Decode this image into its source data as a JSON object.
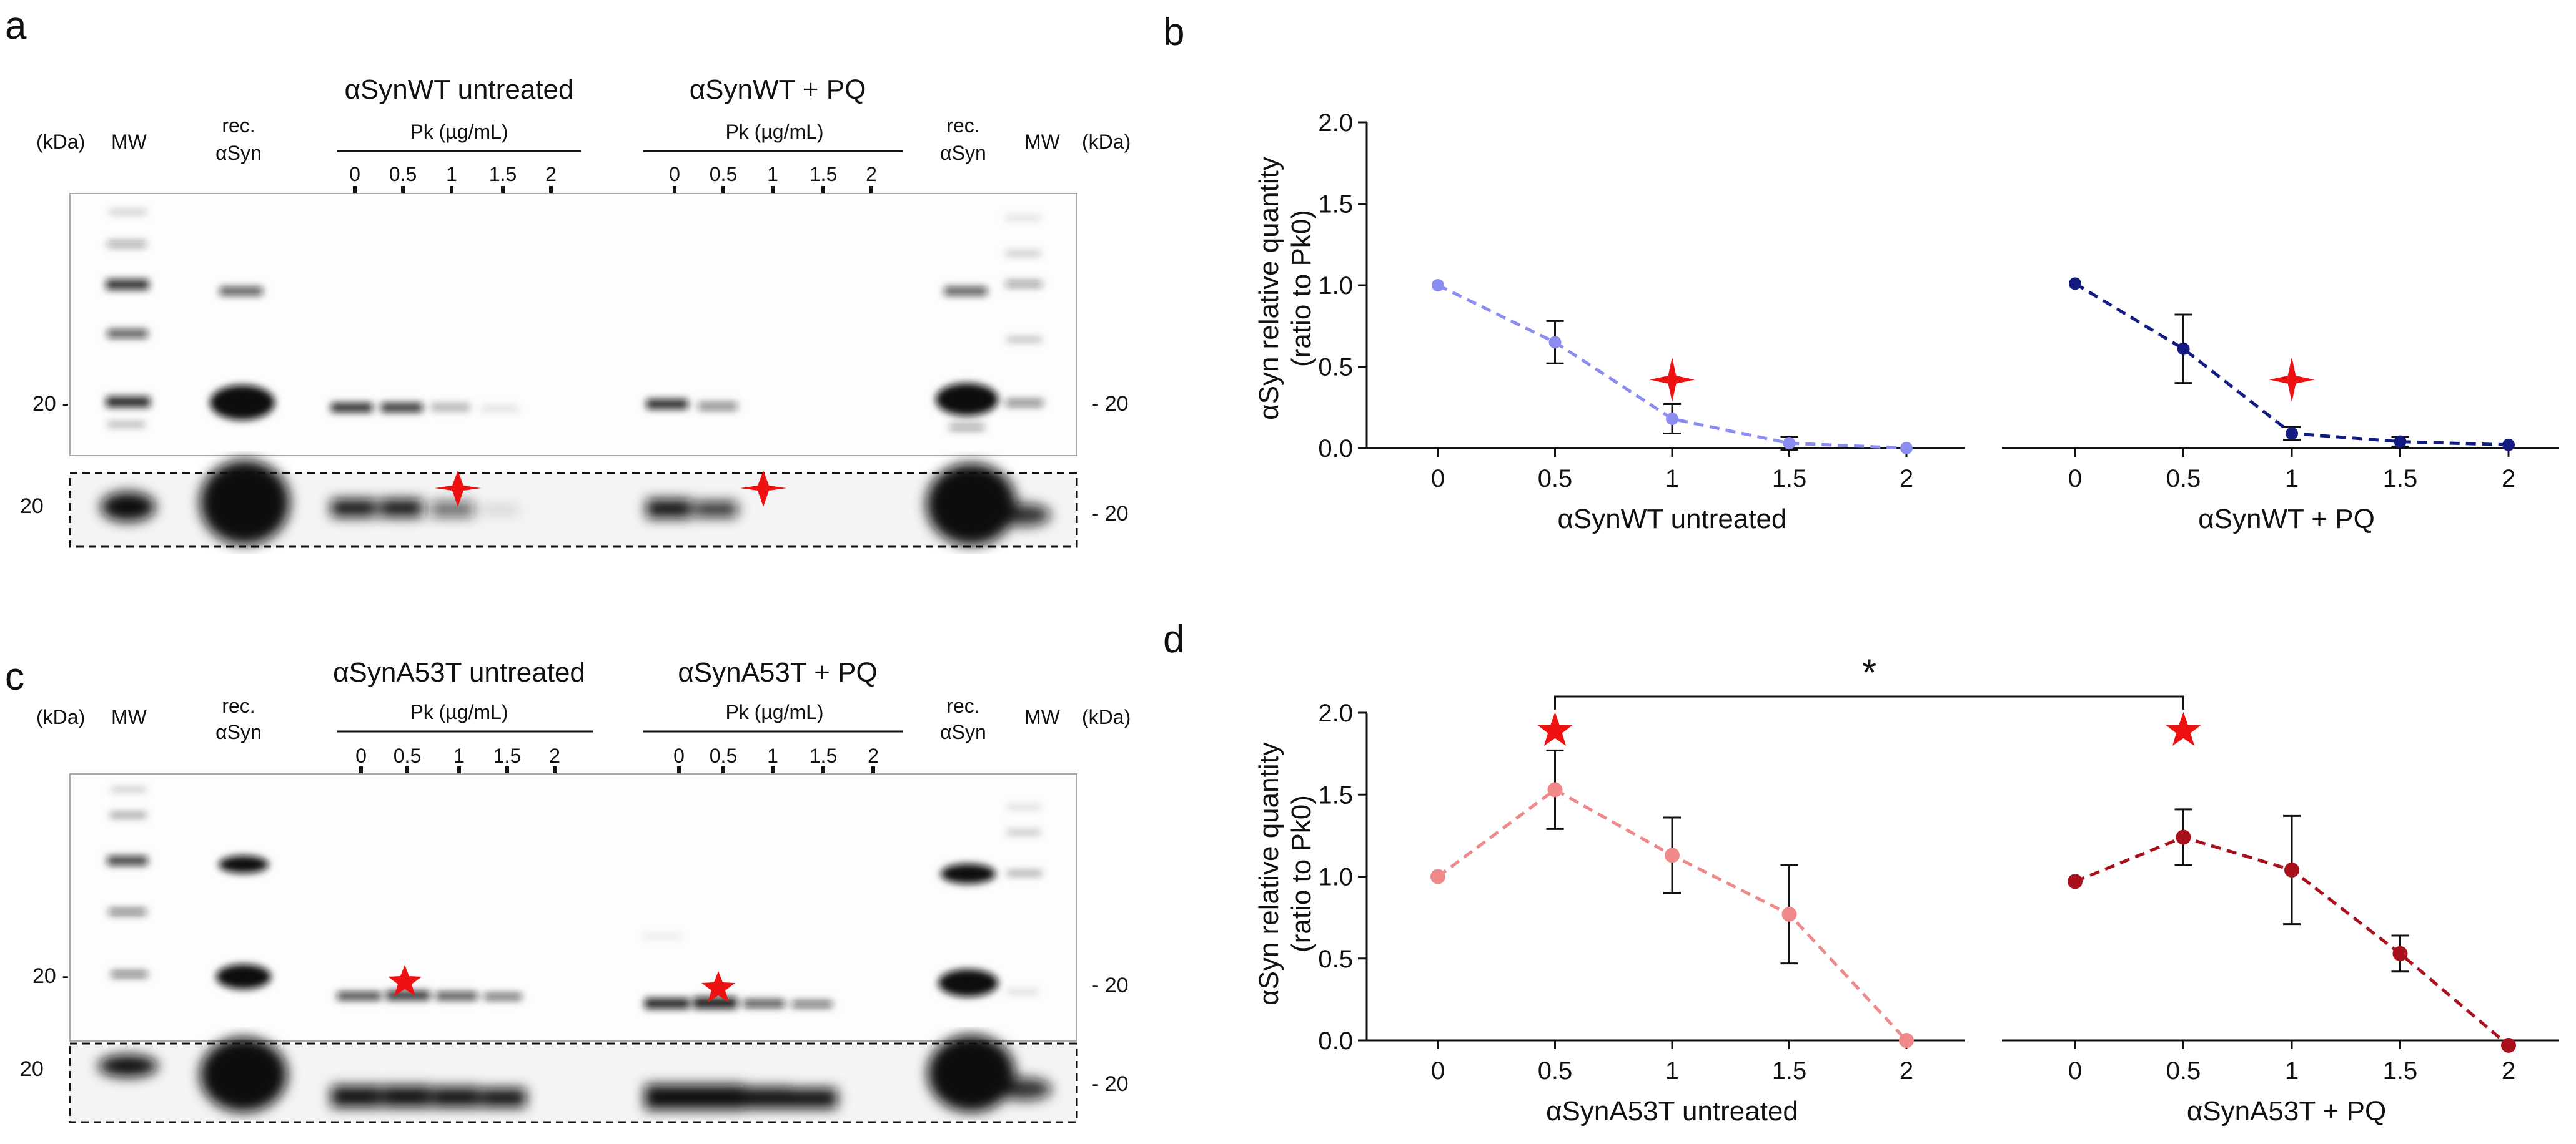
{
  "panels": {
    "a": {
      "letter": "a",
      "group_left": "αSynWT untreated",
      "group_right": "αSynWT + PQ",
      "pk_label": "Pk (µg/mL)",
      "doses": [
        "0",
        "0.5",
        "1",
        "1.5",
        "2"
      ],
      "kda": "(kDa)",
      "mw": "MW",
      "rec": [
        "rec.",
        "αSyn"
      ],
      "marker": "20",
      "marker_right": "- 20",
      "marker_left": "20 -",
      "highlight_symbol": "four-point-star"
    },
    "c": {
      "letter": "c",
      "group_left": "αSynA53T untreated",
      "group_right": "αSynA53T + PQ",
      "pk_label": "Pk (µg/mL)",
      "doses": [
        "0",
        "0.5",
        "1",
        "1.5",
        "2"
      ],
      "kda": "(kDa)",
      "mw": "MW",
      "rec": [
        "rec.",
        "αSyn"
      ],
      "marker": "20",
      "marker_right": "- 20",
      "marker_left": "20 -",
      "highlight_symbol": "five-point-star"
    },
    "b": {
      "letter": "b"
    },
    "d": {
      "letter": "d",
      "significance": "*"
    }
  },
  "colors": {
    "wt_untreated": "#8b8cf0",
    "wt_pq": "#141b80",
    "a53t_untreated": "#f08a8a",
    "a53t_pq": "#a8101c",
    "star": "#ee1111"
  },
  "chart_data": [
    {
      "id": "b",
      "type": "line",
      "ylabel": "αSyn relative quantity (ratio to Pk0)",
      "ylabel_lines": [
        "αSyn relative quantity",
        "(ratio to Pk0)"
      ],
      "ylim": [
        0,
        2.0
      ],
      "yticks": [
        "0.0",
        "0.5",
        "1.0",
        "1.5",
        "2.0"
      ],
      "x": [
        0,
        0.5,
        1,
        1.5,
        2
      ],
      "xticks": [
        "0",
        "0.5",
        "1",
        "1.5",
        "2"
      ],
      "series": [
        {
          "xlabel": "αSynWT untreated",
          "color": "#8b8cf0",
          "values": [
            1.0,
            0.65,
            0.18,
            0.03,
            0.0
          ],
          "errors": [
            0,
            0.13,
            0.09,
            0.04,
            0
          ],
          "marker_at": 1,
          "marker_y": 0.42
        },
        {
          "xlabel": "αSynWT + PQ",
          "color": "#141b80",
          "values": [
            1.01,
            0.61,
            0.09,
            0.04,
            0.02
          ],
          "errors": [
            0,
            0.21,
            0.04,
            0.03,
            0
          ],
          "marker_at": 1,
          "marker_y": 0.42
        }
      ]
    },
    {
      "id": "d",
      "type": "line",
      "ylabel": "αSyn relative quantity (ratio to Pk0)",
      "ylabel_lines": [
        "αSyn relative quantity",
        "(ratio to Pk0)"
      ],
      "ylim": [
        0,
        2.0
      ],
      "yticks": [
        "0.0",
        "0.5",
        "1.0",
        "1.5",
        "2.0"
      ],
      "x": [
        0,
        0.5,
        1,
        1.5,
        2
      ],
      "xticks": [
        "0",
        "0.5",
        "1",
        "1.5",
        "2"
      ],
      "significance": "*",
      "series": [
        {
          "xlabel": "αSynA53T untreated",
          "color": "#f08a8a",
          "values": [
            1.0,
            1.53,
            1.13,
            0.77,
            0.0
          ],
          "errors": [
            0,
            0.24,
            0.23,
            0.3,
            0
          ],
          "marker_at": 0.5,
          "marker_y": 1.89
        },
        {
          "xlabel": "αSynA53T + PQ",
          "color": "#a8101c",
          "values": [
            0.97,
            1.24,
            1.04,
            0.53,
            -0.03
          ],
          "errors": [
            0,
            0.17,
            0.33,
            0.11,
            0
          ],
          "marker_at": 0.5,
          "marker_y": 1.89
        }
      ]
    }
  ]
}
